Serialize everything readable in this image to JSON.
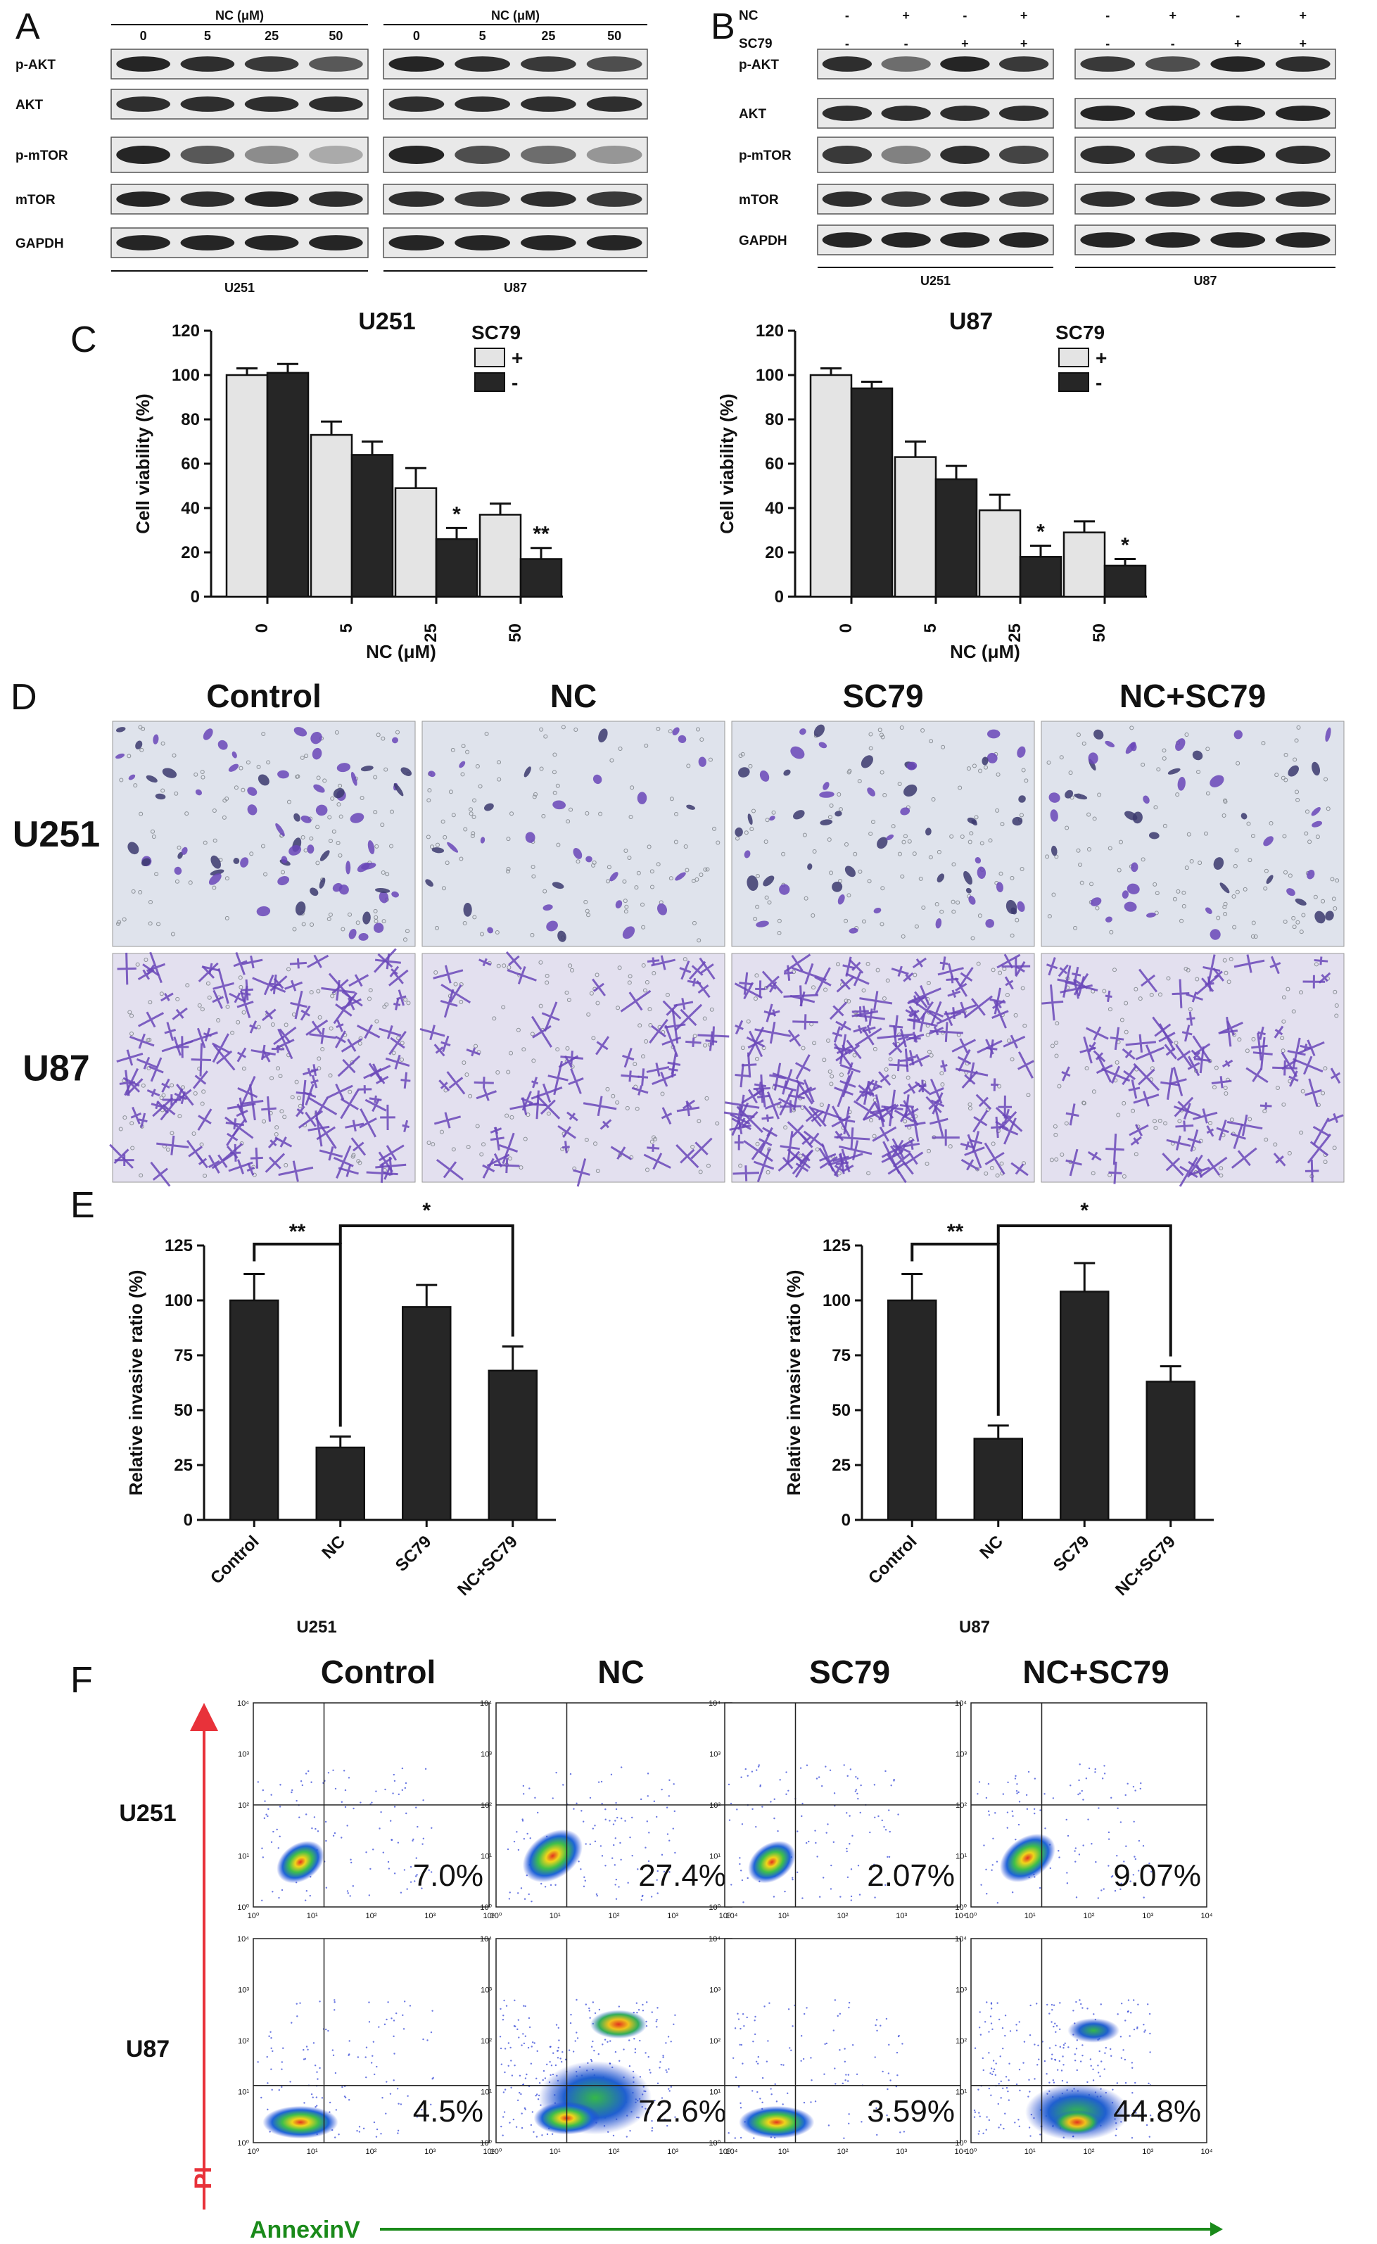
{
  "panel_labels": {
    "a": "A",
    "b": "B",
    "c": "C",
    "d": "D",
    "e": "E",
    "f": "F"
  },
  "colors": {
    "bar_light": "#e4e4e4",
    "bar_dark": "#262626",
    "blot_bg": "#e9e9e9",
    "band": "#1a1a1a",
    "purple": "#6a46b8",
    "axis_red": "#e8323a",
    "axis_green": "#1a8a1a"
  },
  "panelA": {
    "conc_header": "NC (μM)",
    "conc": [
      "0",
      "5",
      "25",
      "50"
    ],
    "rows": [
      "p-AKT",
      "AKT",
      "p-mTOR",
      "mTOR",
      "GAPDH"
    ],
    "cell_lines": [
      "U251",
      "U87"
    ]
  },
  "panelB": {
    "nc_label": "NC",
    "sc79_label": "SC79",
    "nc_signs": [
      "-",
      "+",
      "-",
      "+"
    ],
    "sc79_signs": [
      "-",
      "-",
      "+",
      "+"
    ],
    "rows": [
      "p-AKT",
      "AKT",
      "p-mTOR",
      "mTOR",
      "GAPDH"
    ],
    "cell_lines": [
      "U251",
      "U87"
    ]
  },
  "chart_data": [
    {
      "type": "bar",
      "panel": "C",
      "title": "U251",
      "categories": [
        "0",
        "5",
        "25",
        "50"
      ],
      "xlabel": "NC (μM)",
      "ylabel": "Cell viability (%)",
      "ylim": [
        0,
        120
      ],
      "yticks": [
        "0",
        "20",
        "40",
        "60",
        "80",
        "100",
        "120"
      ],
      "legend_title": "SC79",
      "series": [
        {
          "name": "+",
          "values": [
            100,
            73,
            49,
            37
          ],
          "errors": [
            3,
            6,
            9,
            5
          ]
        },
        {
          "name": "-",
          "values": [
            101,
            64,
            26,
            17
          ],
          "errors": [
            4,
            6,
            5,
            5
          ]
        }
      ],
      "annotations": [
        "",
        "",
        "*",
        "**"
      ]
    },
    {
      "type": "bar",
      "panel": "C",
      "title": "U87",
      "categories": [
        "0",
        "5",
        "25",
        "50"
      ],
      "xlabel": "NC (μM)",
      "ylabel": "Cell viability (%)",
      "ylim": [
        0,
        120
      ],
      "yticks": [
        "0",
        "20",
        "40",
        "60",
        "80",
        "100",
        "120"
      ],
      "legend_title": "SC79",
      "series": [
        {
          "name": "+",
          "values": [
            100,
            63,
            39,
            29
          ],
          "errors": [
            3,
            7,
            7,
            5
          ]
        },
        {
          "name": "-",
          "values": [
            94,
            53,
            18,
            14
          ],
          "errors": [
            3,
            6,
            5,
            3
          ]
        }
      ],
      "annotations": [
        "",
        "",
        "*",
        "*"
      ]
    },
    {
      "type": "bar",
      "panel": "E",
      "title": "U251",
      "categories": [
        "Control",
        "NC",
        "SC79",
        "NC+SC79"
      ],
      "ylabel": "Relative invasive ratio (%)",
      "ylim": [
        0,
        125
      ],
      "yticks": [
        "0",
        "25",
        "50",
        "75",
        "100",
        "125"
      ],
      "values": [
        100,
        33,
        97,
        68
      ],
      "errors": [
        12,
        5,
        10,
        11
      ],
      "sig": [
        "**",
        "*"
      ]
    },
    {
      "type": "bar",
      "panel": "E",
      "title": "U87",
      "categories": [
        "Control",
        "NC",
        "SC79",
        "NC+SC79"
      ],
      "ylabel": "Relative invasive ratio (%)",
      "ylim": [
        0,
        125
      ],
      "yticks": [
        "0",
        "25",
        "50",
        "75",
        "100",
        "125"
      ],
      "values": [
        100,
        37,
        104,
        63
      ],
      "errors": [
        12,
        6,
        13,
        7
      ],
      "sig": [
        "**",
        "*"
      ]
    }
  ],
  "panelD": {
    "columns": [
      "Control",
      "NC",
      "SC79",
      "NC+SC79"
    ],
    "rows": [
      "U251",
      "U87"
    ]
  },
  "panelF": {
    "columns": [
      "Control",
      "NC",
      "SC79",
      "NC+SC79"
    ],
    "rows": [
      "U251",
      "U87"
    ],
    "percentages": [
      [
        "7.0%",
        "27.4%",
        "2.07%",
        "9.07%"
      ],
      [
        "4.5%",
        "72.6%",
        "3.59%",
        "44.8%"
      ]
    ],
    "y_axis": "PI",
    "x_axis": "AnnexinV",
    "ticks": [
      "10⁰",
      "10¹",
      "10²",
      "10³",
      "10⁴"
    ]
  }
}
